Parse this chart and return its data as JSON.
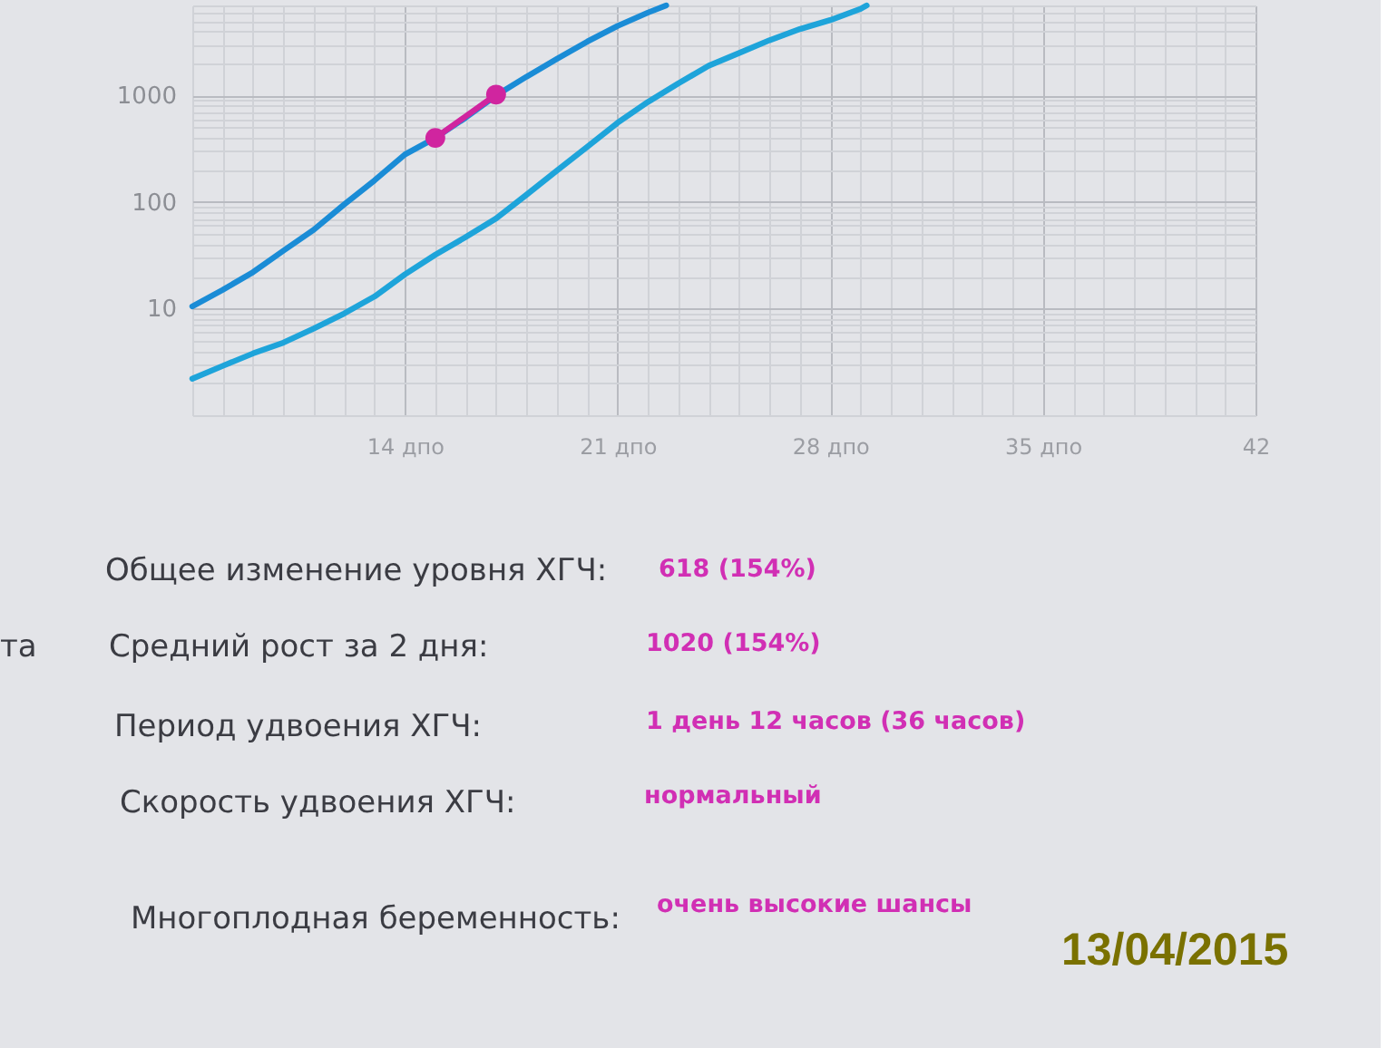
{
  "chart_data": {
    "type": "line",
    "log": "y",
    "grid": true,
    "xlim": [
      7,
      42
    ],
    "xticks": [
      {
        "value": 7,
        "label": null
      },
      {
        "value": 8,
        "label": null
      },
      {
        "value": 9,
        "label": null
      },
      {
        "value": 10,
        "label": null
      },
      {
        "value": 11,
        "label": null
      },
      {
        "value": 12,
        "label": null
      },
      {
        "value": 13,
        "label": null
      },
      {
        "value": 14,
        "label": "14 дпо"
      },
      {
        "value": 15,
        "label": null
      },
      {
        "value": 16,
        "label": null
      },
      {
        "value": 17,
        "label": null
      },
      {
        "value": 18,
        "label": null
      },
      {
        "value": 19,
        "label": null
      },
      {
        "value": 20,
        "label": null
      },
      {
        "value": 21,
        "label": "21 дпо"
      },
      {
        "value": 22,
        "label": null
      },
      {
        "value": 23,
        "label": null
      },
      {
        "value": 24,
        "label": null
      },
      {
        "value": 25,
        "label": null
      },
      {
        "value": 26,
        "label": null
      },
      {
        "value": 27,
        "label": null
      },
      {
        "value": 28,
        "label": "28 дпо"
      },
      {
        "value": 29,
        "label": null
      },
      {
        "value": 30,
        "label": null
      },
      {
        "value": 31,
        "label": null
      },
      {
        "value": 32,
        "label": null
      },
      {
        "value": 33,
        "label": null
      },
      {
        "value": 34,
        "label": null
      },
      {
        "value": 35,
        "label": "35 дпо"
      },
      {
        "value": 36,
        "label": null
      },
      {
        "value": 37,
        "label": null
      },
      {
        "value": 38,
        "label": null
      },
      {
        "value": 39,
        "label": null
      },
      {
        "value": 40,
        "label": null
      },
      {
        "value": 41,
        "label": null
      },
      42
    ],
    "ylim": [
      1,
      7000
    ],
    "yticks": [
      {
        "value": 1,
        "label": null
      },
      {
        "value": 2,
        "label": null
      },
      {
        "value": 3,
        "label": null
      },
      {
        "value": 4,
        "label": null
      },
      {
        "value": 5,
        "label": null
      },
      {
        "value": 6,
        "label": null
      },
      {
        "value": 7,
        "label": null
      },
      {
        "value": 8,
        "label": null
      },
      {
        "value": 9,
        "label": null
      },
      10,
      {
        "value": 20,
        "label": null
      },
      {
        "value": 30,
        "label": null
      },
      {
        "value": 40,
        "label": null
      },
      {
        "value": 50,
        "label": null
      },
      {
        "value": 60,
        "label": null
      },
      {
        "value": 70,
        "label": null
      },
      {
        "value": 80,
        "label": null
      },
      {
        "value": 90,
        "label": null
      },
      100,
      {
        "value": 200,
        "label": null
      },
      {
        "value": 300,
        "label": null
      },
      {
        "value": 400,
        "label": null
      },
      {
        "value": 500,
        "label": null
      },
      {
        "value": 600,
        "label": null
      },
      {
        "value": 700,
        "label": null
      },
      {
        "value": 800,
        "label": null
      },
      {
        "value": 900,
        "label": null
      },
      1000,
      {
        "value": 2000,
        "label": null
      },
      {
        "value": 3000,
        "label": null
      },
      {
        "value": 4000,
        "label": null
      },
      {
        "value": 5000,
        "label": null
      },
      {
        "value": 6000,
        "label": null
      },
      {
        "value": 7000,
        "label": null
      }
    ],
    "series": [
      {
        "color": "#1a8cd6",
        "x": [
          7,
          8,
          9,
          10,
          11,
          12,
          13,
          14,
          15,
          16,
          17,
          18,
          19,
          20,
          21,
          22,
          22.6
        ],
        "values": [
          10.5,
          15,
          22,
          35,
          55,
          95,
          160,
          280,
          400,
          620,
          1000,
          1500,
          2200,
          3200,
          4500,
          6000,
          7000
        ]
      },
      {
        "color": "#1ea4da",
        "x": [
          7,
          8,
          9,
          10,
          11,
          12,
          13,
          14,
          15,
          16,
          17,
          18,
          19,
          20,
          21,
          22,
          23,
          24,
          25,
          26,
          27,
          28,
          29,
          29.2
        ],
        "values": [
          2.2,
          2.9,
          3.8,
          4.8,
          6.5,
          9,
          13,
          21,
          32,
          47,
          70,
          117,
          197,
          330,
          555,
          870,
          1300,
          1900,
          2500,
          3300,
          4200,
          5100,
          6500,
          7000
        ]
      },
      {
        "color": "#d0259f",
        "marker": "circle",
        "x": [
          15,
          17
        ],
        "values": [
          400,
          1020
        ]
      }
    ],
    "annotations": [
      "Общее изменение уровня ХГЧ:",
      "618 (154%)",
      "Средний рост за 2 дня:",
      "1020 (154%)",
      "Период удвоения ХГЧ:",
      "1 день 12 часов (36 часов)",
      "Скорость удвоения ХГЧ:",
      "нормальный",
      "Многоплодная беременность:",
      "очень высокие шансы",
      "та",
      "13/04/2015"
    ]
  }
}
